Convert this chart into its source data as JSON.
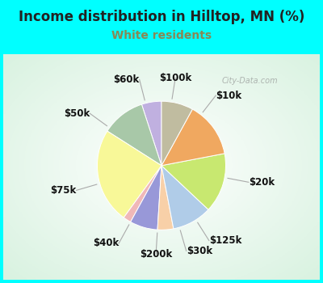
{
  "title": "Income distribution in Hilltop, MN (%)",
  "subtitle": "White residents",
  "title_color": "#222222",
  "subtitle_color": "#888855",
  "background_outer": "#00ffff",
  "background_inner": "#e8f8f0",
  "watermark": "City-Data.com",
  "slices": [
    {
      "label": "$100k",
      "value": 5,
      "color": "#c0b0e0"
    },
    {
      "label": "$10k",
      "value": 11,
      "color": "#a8c8a8"
    },
    {
      "label": "$20k",
      "value": 24,
      "color": "#f8f898"
    },
    {
      "label": "$125k",
      "value": 2,
      "color": "#f0b8b8"
    },
    {
      "label": "$30k",
      "value": 7,
      "color": "#9898d8"
    },
    {
      "label": "$200k",
      "value": 4,
      "color": "#f8d0a8"
    },
    {
      "label": "$40k",
      "value": 10,
      "color": "#b0cce8"
    },
    {
      "label": "$75k",
      "value": 15,
      "color": "#c8e870"
    },
    {
      "label": "$50k",
      "value": 14,
      "color": "#f0a860"
    },
    {
      "label": "$60k",
      "value": 8,
      "color": "#c0bca0"
    }
  ],
  "label_fontsize": 8.5,
  "title_fontsize": 12,
  "subtitle_fontsize": 10
}
